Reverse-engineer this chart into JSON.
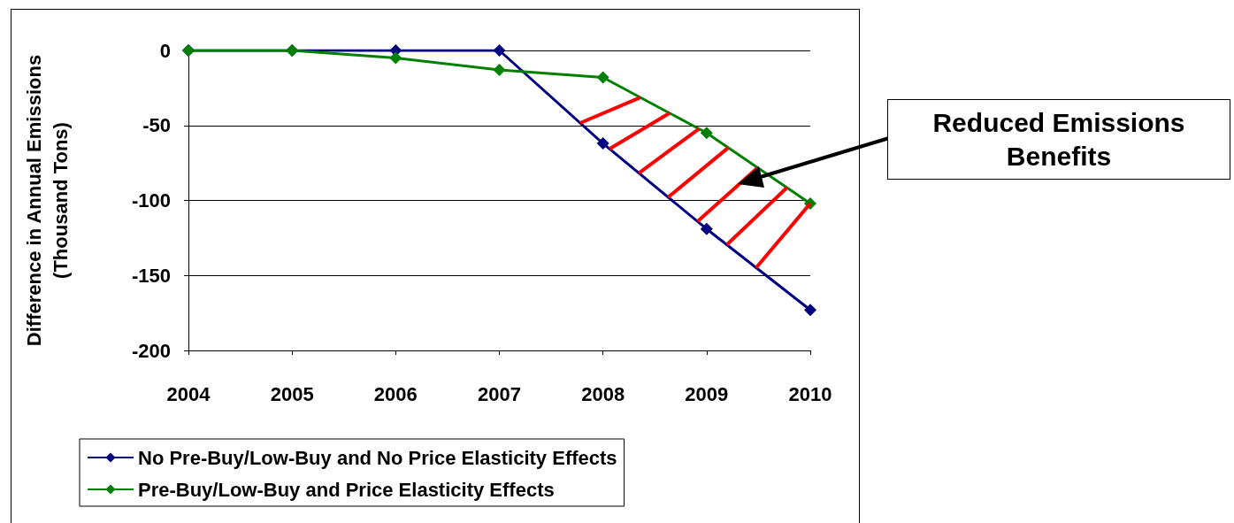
{
  "chart_data": {
    "type": "line",
    "ylabel": "Difference in Annual Emissions\n(Thousand Tons)",
    "categories": [
      "2004",
      "2005",
      "2006",
      "2007",
      "2008",
      "2009",
      "2010"
    ],
    "series": [
      {
        "name": "No Pre-Buy/Low-Buy and No Price Elasticity Effects",
        "color": "#000080",
        "values": [
          0,
          0,
          0,
          0,
          -62,
          -119,
          -173
        ]
      },
      {
        "name": "Pre-Buy/Low-Buy and Price Elasticity Effects",
        "color": "#008000",
        "values": [
          0,
          0,
          -5,
          -13,
          -18,
          -55,
          -102
        ]
      }
    ],
    "ylim": [
      -200,
      0
    ],
    "yticks": [
      0,
      -50,
      -100,
      -150,
      -200
    ],
    "grid": "y",
    "legend": "bottom left",
    "marker": "diamond",
    "line_style": "solid",
    "annotations": [
      "Reduced Emissions Benefits"
    ]
  }
}
